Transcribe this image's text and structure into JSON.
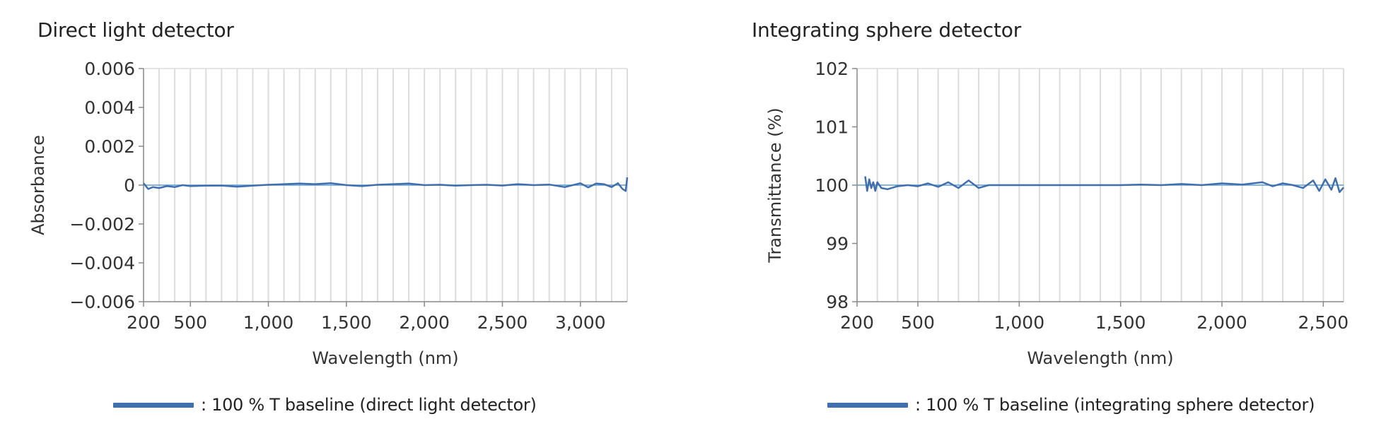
{
  "colors": {
    "series": "#3f6fae",
    "baseline_line": "#5b9bd5",
    "grid": "#dcdcdc",
    "axis": "#888888"
  },
  "chart_data": [
    {
      "type": "line",
      "title": "Direct light detector",
      "xlabel": "Wavelength (nm)",
      "ylabel": "Absorbance",
      "xlim": [
        200,
        3300
      ],
      "ylim": [
        -0.006,
        0.006
      ],
      "x_ticks": [
        200,
        500,
        1000,
        1500,
        2000,
        2500,
        3000
      ],
      "x_tick_labels": [
        "200",
        "500",
        "1,000",
        "1,500",
        "2,000",
        "2,500",
        "3,000"
      ],
      "y_ticks": [
        -0.006,
        -0.004,
        -0.002,
        0,
        0.002,
        0.004,
        0.006
      ],
      "y_tick_labels": [
        "−0.006",
        "−0.004",
        "−0.002",
        "0",
        "0.002",
        "0.004",
        "0.006"
      ],
      "vertical_grid_spacing": 100,
      "grid": true,
      "legend_position": "bottom",
      "series": [
        {
          "name": "100 % T baseline (direct light detector)",
          "legend_label": ": 100 % T baseline (direct light detector)",
          "x": [
            200,
            230,
            260,
            300,
            350,
            400,
            450,
            500,
            600,
            700,
            800,
            900,
            1000,
            1100,
            1200,
            1300,
            1400,
            1500,
            1600,
            1700,
            1800,
            1900,
            2000,
            2100,
            2200,
            2300,
            2400,
            2500,
            2600,
            2700,
            2800,
            2900,
            3000,
            3050,
            3100,
            3150,
            3200,
            3240,
            3270,
            3290,
            3300
          ],
          "y": [
            0.0001,
            -0.0002,
            -0.0001,
            -0.00015,
            -5e-05,
            -0.0001,
            0.0,
            -5e-05,
            -3e-05,
            -2e-05,
            -8e-05,
            -3e-05,
            2e-05,
            5e-05,
            8e-05,
            5e-05,
            0.0001,
            0.0,
            -5e-05,
            2e-05,
            5e-05,
            8e-05,
            0.0,
            2e-05,
            -3e-05,
            0.0,
            2e-05,
            -2e-05,
            5e-05,
            0.0,
            3e-05,
            -0.0001,
            0.0001,
            -0.00012,
            8e-05,
            5e-05,
            -0.0001,
            0.0001,
            -0.0002,
            -0.0003,
            0.0004
          ]
        }
      ]
    },
    {
      "type": "line",
      "title": "Integrating sphere detector",
      "xlabel": "Wavelength (nm)",
      "ylabel": "Transmittance (%)",
      "xlim": [
        200,
        2600
      ],
      "ylim": [
        98,
        102
      ],
      "x_ticks": [
        200,
        500,
        1000,
        1500,
        2000,
        2500
      ],
      "x_tick_labels": [
        "200",
        "500",
        "1,000",
        "1,500",
        "2,000",
        "2,500"
      ],
      "y_ticks": [
        98,
        99,
        100,
        101,
        102
      ],
      "y_tick_labels": [
        "98",
        "99",
        "100",
        "101",
        "102"
      ],
      "vertical_grid_spacing": 100,
      "grid": true,
      "legend_position": "bottom",
      "series": [
        {
          "name": "100 % T baseline (integrating sphere detector)",
          "legend_label": ": 100 % T baseline (integrating sphere detector)",
          "x": [
            240,
            250,
            260,
            270,
            280,
            290,
            300,
            320,
            350,
            400,
            450,
            500,
            550,
            600,
            650,
            700,
            750,
            800,
            850,
            900,
            1000,
            1100,
            1200,
            1300,
            1400,
            1500,
            1600,
            1700,
            1800,
            1900,
            2000,
            2100,
            2200,
            2250,
            2300,
            2350,
            2400,
            2450,
            2480,
            2510,
            2540,
            2560,
            2580,
            2600
          ],
          "y": [
            100.15,
            99.9,
            100.1,
            99.95,
            100.05,
            99.9,
            100.05,
            99.95,
            99.93,
            99.98,
            100.0,
            99.98,
            100.03,
            99.97,
            100.05,
            99.95,
            100.08,
            99.95,
            100.0,
            100.0,
            100.0,
            100.0,
            100.0,
            100.0,
            100.0,
            100.0,
            100.01,
            100.0,
            100.02,
            100.0,
            100.03,
            100.01,
            100.05,
            99.98,
            100.03,
            100.0,
            99.95,
            100.08,
            99.9,
            100.1,
            99.92,
            100.12,
            99.88,
            99.96
          ]
        }
      ]
    }
  ]
}
